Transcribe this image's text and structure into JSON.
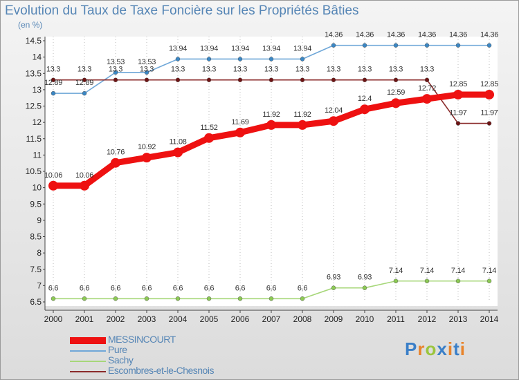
{
  "title": "Evolution du Taux de Taxe Foncière sur les Propriétés Bâties",
  "unit_label": "(en %)",
  "logo": {
    "letters": [
      {
        "ch": "P",
        "color": "#3a7fc8"
      },
      {
        "ch": "r",
        "color": "#e8832a"
      },
      {
        "ch": "o",
        "color": "#9bc53d"
      },
      {
        "ch": "x",
        "color": "#3a7fc8"
      },
      {
        "ch": "i",
        "color": "#e8832a"
      },
      {
        "ch": "t",
        "color": "#3a7fc8"
      },
      {
        "ch": "i",
        "color": "#e8832a"
      }
    ]
  },
  "chart_data": {
    "type": "line",
    "title": "Evolution du Taux de Taxe Foncière sur les Propriétés Bâties",
    "ylabel": "(en %)",
    "xlabel": "",
    "ylim": [
      6.5,
      14.5
    ],
    "yticks": [
      "6.5",
      "7",
      "7.5",
      "8",
      "8.5",
      "9",
      "9.5",
      "10",
      "10.5",
      "11",
      "11.5",
      "12",
      "12.5",
      "13",
      "13.5",
      "14",
      "14.5"
    ],
    "x": [
      "2000",
      "2001",
      "2002",
      "2003",
      "2004",
      "2005",
      "2006",
      "2007",
      "2008",
      "2009",
      "2010",
      "2011",
      "2012",
      "2013",
      "2014"
    ],
    "grid": "dotted vertical lines at each year",
    "legend_position": "bottom-left",
    "series": [
      {
        "name": "MESSINCOURT",
        "color": "#ee1111",
        "marker": "#ee1111",
        "width": "thick",
        "values": [
          10.06,
          10.06,
          10.76,
          10.92,
          11.08,
          11.52,
          11.69,
          11.92,
          11.92,
          12.04,
          12.4,
          12.59,
          12.72,
          12.85,
          12.85
        ],
        "labels": [
          "10.06",
          "10.06",
          "10.76",
          "10.92",
          "11.08",
          "11.52",
          "11.69",
          "11.92",
          "11.92",
          "12.04",
          "12.4",
          "12.59",
          "12.72",
          "12.85",
          "12.85"
        ]
      },
      {
        "name": "Pure",
        "color": "#6fa7d8",
        "marker": "#3b87c4",
        "width": "thin",
        "values": [
          12.89,
          12.89,
          13.53,
          13.53,
          13.94,
          13.94,
          13.94,
          13.94,
          13.94,
          14.36,
          14.36,
          14.36,
          14.36,
          14.36,
          14.36
        ],
        "labels": [
          "12.89",
          "12.89",
          "13.53",
          "13.53",
          "13.94",
          "13.94",
          "13.94",
          "13.94",
          "13.94",
          "14.36",
          "14.36",
          "14.36",
          "14.36",
          "14.36",
          "14.36"
        ]
      },
      {
        "name": "Sachy",
        "color": "#a7d77a",
        "marker": "#8cc954",
        "width": "thin",
        "values": [
          6.6,
          6.6,
          6.6,
          6.6,
          6.6,
          6.6,
          6.6,
          6.6,
          6.6,
          6.93,
          6.93,
          7.14,
          7.14,
          7.14,
          7.14
        ],
        "labels": [
          "6.6",
          "6.6",
          "6.6",
          "6.6",
          "6.6",
          "6.6",
          "6.6",
          "6.6",
          "6.6",
          "6.93",
          "6.93",
          "7.14",
          "7.14",
          "7.14",
          "7.14"
        ]
      },
      {
        "name": "Escombres-et-le-Chesnois",
        "color": "#8a2a2a",
        "marker": "#6e1414",
        "width": "thin",
        "values": [
          13.3,
          13.3,
          13.3,
          13.3,
          13.3,
          13.3,
          13.3,
          13.3,
          13.3,
          13.3,
          13.3,
          13.3,
          13.3,
          11.97,
          11.97
        ],
        "labels": [
          "13.3",
          "13.3",
          "13.3",
          "13.3",
          "13.3",
          "13.3",
          "13.3",
          "13.3",
          "13.3",
          "13.3",
          "13.3",
          "13.3",
          "13.3",
          "11.97",
          "11.97"
        ]
      }
    ]
  }
}
